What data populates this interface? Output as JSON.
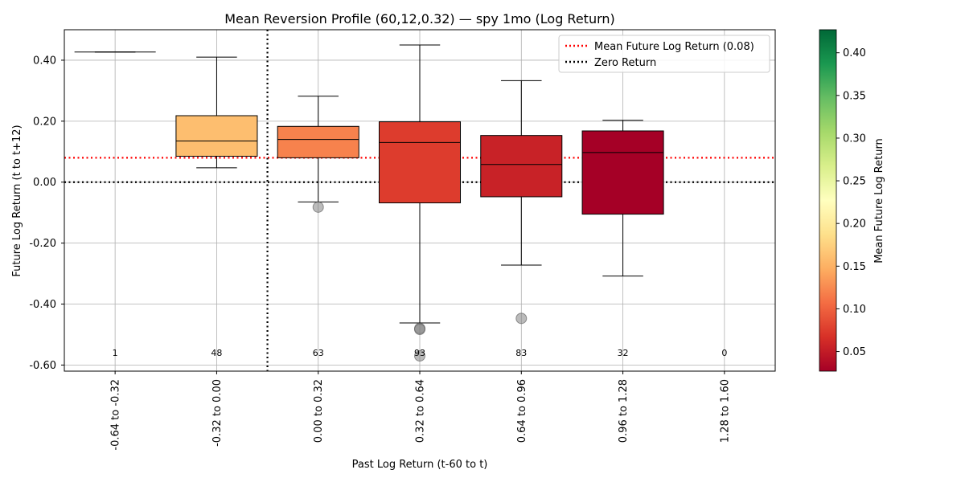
{
  "chart_data": {
    "type": "box",
    "title": "Mean Reversion Profile (60,12,0.32) — spy 1mo (Log Return)",
    "xlabel": "Past Log Return (t-60 to t)",
    "ylabel": "Future Log Return (t to t+12)",
    "ylim": [
      -0.62,
      0.5
    ],
    "y_ticks": [
      -0.6,
      -0.4,
      -0.2,
      0.0,
      0.2,
      0.4
    ],
    "y_tick_labels": [
      "-0.60",
      "-0.40",
      "-0.20",
      "0.00",
      "0.20",
      "0.40"
    ],
    "grid": true,
    "categories": [
      "-0.64 to -0.32",
      "-0.32 to 0.00",
      "0.00 to 0.32",
      "0.32 to 0.64",
      "0.64 to 0.96",
      "0.96 to 1.28",
      "1.28 to 1.60"
    ],
    "boxes": [
      {
        "q1": 0.427,
        "median": 0.427,
        "q3": 0.427,
        "whisker_low": 0.427,
        "whisker_high": 0.427,
        "mean": 0.427,
        "count": "1",
        "outliers": []
      },
      {
        "q1": 0.085,
        "median": 0.135,
        "q3": 0.218,
        "whisker_low": 0.047,
        "whisker_high": 0.41,
        "mean": 0.16,
        "count": "48",
        "outliers": []
      },
      {
        "q1": 0.08,
        "median": 0.14,
        "q3": 0.183,
        "whisker_low": -0.065,
        "whisker_high": 0.282,
        "mean": 0.12,
        "count": "63",
        "outliers": [
          -0.082
        ]
      },
      {
        "q1": -0.068,
        "median": 0.13,
        "q3": 0.198,
        "whisker_low": -0.462,
        "whisker_high": 0.45,
        "mean": 0.075,
        "count": "93",
        "outliers": [
          -0.48,
          -0.483,
          -0.57
        ]
      },
      {
        "q1": -0.048,
        "median": 0.058,
        "q3": 0.153,
        "whisker_low": -0.272,
        "whisker_high": 0.333,
        "mean": 0.055,
        "count": "83",
        "outliers": [
          -0.447
        ]
      },
      {
        "q1": -0.105,
        "median": 0.097,
        "q3": 0.168,
        "whisker_low": -0.308,
        "whisker_high": 0.203,
        "mean": 0.027,
        "count": "32",
        "outliers": []
      },
      {
        "q1": null,
        "median": null,
        "q3": null,
        "whisker_low": null,
        "whisker_high": null,
        "mean": null,
        "count": "0",
        "outliers": []
      }
    ],
    "mean_line": {
      "value": 0.08,
      "label": "Mean Future Log Return (0.08)",
      "color": "#ff0000",
      "style": "dotted"
    },
    "zero_line": {
      "value": 0.0,
      "label": "Zero Return",
      "color": "#000000",
      "style": "dotted"
    },
    "vertical_divider_at_category_index": 1.5,
    "legend_placement": "top-right",
    "colorbar": {
      "label": "Mean Future Log Return",
      "colormap": "RdYlGn",
      "range": [
        0.027,
        0.427
      ],
      "ticks": [
        0.05,
        0.1,
        0.15,
        0.2,
        0.25,
        0.3,
        0.35,
        0.4
      ],
      "tick_labels": [
        "0.05",
        "0.10",
        "0.15",
        "0.20",
        "0.25",
        "0.30",
        "0.35",
        "0.40"
      ]
    }
  }
}
